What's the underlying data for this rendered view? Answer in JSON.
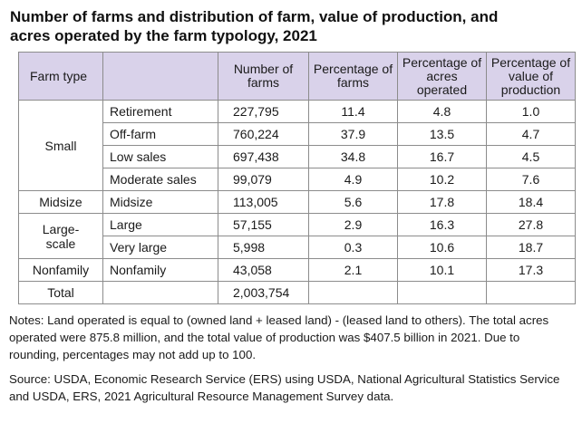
{
  "title_line1": "Number of farms and distribution of farm, value of production, and",
  "title_line2": "acres operated by the farm typology, 2021",
  "table": {
    "headers": [
      "Farm type",
      "",
      "Number of farms",
      "Percentage of farms",
      "Percentage of acres operated",
      "Percentage of value of production"
    ],
    "groups": {
      "small": "Small",
      "midsize": "Midsize",
      "large_scale": "Large-scale",
      "nonfamily": "Nonfamily",
      "total": "Total"
    },
    "rows": [
      {
        "sub": "Retirement",
        "farms": "227,795",
        "pct_farms": "11.4",
        "pct_acres": "4.8",
        "pct_value": "1.0"
      },
      {
        "sub": "Off-farm",
        "farms": "760,224",
        "pct_farms": "37.9",
        "pct_acres": "13.5",
        "pct_value": "4.7"
      },
      {
        "sub": "Low sales",
        "farms": "697,438",
        "pct_farms": "34.8",
        "pct_acres": "16.7",
        "pct_value": "4.5"
      },
      {
        "sub": "Moderate sales",
        "farms": "99,079",
        "pct_farms": "4.9",
        "pct_acres": "10.2",
        "pct_value": "7.6"
      },
      {
        "sub": "Midsize",
        "farms": "113,005",
        "pct_farms": "5.6",
        "pct_acres": "17.8",
        "pct_value": "18.4"
      },
      {
        "sub": "Large",
        "farms": "57,155",
        "pct_farms": "2.9",
        "pct_acres": "16.3",
        "pct_value": "27.8"
      },
      {
        "sub": "Very large",
        "farms": "5,998",
        "pct_farms": "0.3",
        "pct_acres": "10.6",
        "pct_value": "18.7"
      },
      {
        "sub": "Nonfamily",
        "farms": "43,058",
        "pct_farms": "2.1",
        "pct_acres": "10.1",
        "pct_value": "17.3"
      }
    ],
    "total_farms": "2,003,754"
  },
  "notes": "Notes: Land operated is equal to (owned land + leased land) - (leased land to others). The total acres operated were 875.8 million, and the total value of production was $407.5 billion in 2021. Due to rounding, percentages may not add up to 100.",
  "source": "Source: USDA, Economic Research Service (ERS) using USDA, National Agricultural Statistics Service and USDA, ERS, 2021 Agricultural Resource Management Survey data.",
  "colors": {
    "header_bg": "#d9d2ea",
    "border": "#8c8c8c"
  }
}
